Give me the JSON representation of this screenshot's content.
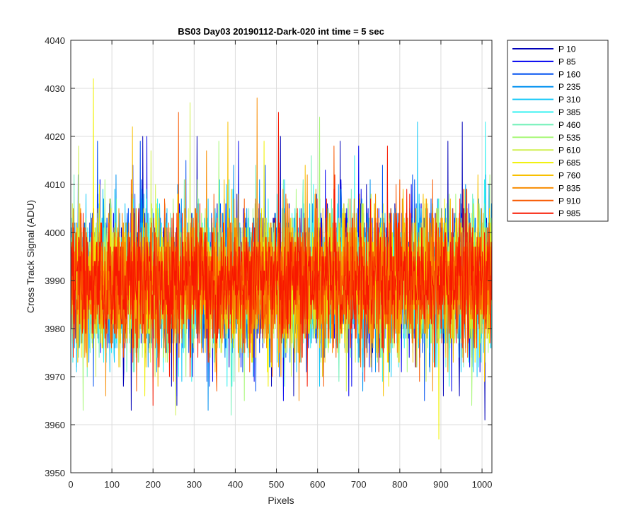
{
  "chart_data": {
    "type": "line",
    "title": "BS03 Day03 20190112-Dark-020 int time = 5 sec",
    "xlabel": "Pixels",
    "ylabel": "Cross Track Signal (ADU)",
    "xlim": [
      0,
      1024
    ],
    "ylim": [
      3950,
      4040
    ],
    "xticks": [
      0,
      100,
      200,
      300,
      400,
      500,
      600,
      700,
      800,
      900,
      1000
    ],
    "yticks": [
      3950,
      3960,
      3970,
      3980,
      3990,
      4000,
      4010,
      4020,
      4030,
      4040
    ],
    "grid": true,
    "legend_position": "outside-right",
    "x_start": 1,
    "x_step": 1,
    "n_points": 1024,
    "noise": {
      "mean": 3990,
      "std": 7,
      "seed": 20190112
    },
    "series": [
      {
        "name": "P 10",
        "color": "#0000B8",
        "highlights": [
          [
            151,
            4014
          ],
          [
            175,
            4020
          ],
          [
            307,
            4020
          ],
          [
            510,
            4020
          ],
          [
            655,
            4019
          ],
          [
            917,
            4019
          ],
          [
            952,
            4023
          ],
          [
            128,
            3968
          ],
          [
            147,
            3963
          ],
          [
            258,
            3964
          ],
          [
            542,
            3966
          ],
          [
            906,
            3966
          ],
          [
            945,
            3966
          ],
          [
            1007,
            3961
          ]
        ]
      },
      {
        "name": "P 85",
        "color": "#0000F0",
        "highlights": [
          [
            185,
            4020
          ],
          [
            408,
            4019
          ],
          [
            619,
            4013
          ],
          [
            700,
            4018
          ],
          [
            258,
            3966
          ],
          [
            517,
            3965
          ],
          [
            676,
            3966
          ],
          [
            926,
            3967
          ]
        ]
      },
      {
        "name": "P 160",
        "color": "#0050F0",
        "highlights": [
          [
            65,
            4019
          ],
          [
            169,
            4019
          ],
          [
            280,
            4015
          ],
          [
            473,
            4014
          ],
          [
            758,
            4014
          ],
          [
            1009,
            4012
          ],
          [
            55,
            3968
          ],
          [
            200,
            3970
          ],
          [
            450,
            3967
          ],
          [
            860,
            3965
          ]
        ]
      },
      {
        "name": "P 235",
        "color": "#0090F0",
        "highlights": [
          [
            110,
            4012
          ],
          [
            396,
            4014
          ],
          [
            770,
            4013
          ],
          [
            1017,
            4010
          ],
          [
            14,
            3972
          ],
          [
            334,
            3963
          ],
          [
            710,
            3967
          ]
        ]
      },
      {
        "name": "P 310",
        "color": "#10C8F8",
        "highlights": [
          [
            843,
            4023
          ],
          [
            520,
            4011
          ],
          [
            95,
            3971
          ],
          [
            605,
            3968
          ],
          [
            760,
            3970
          ]
        ]
      },
      {
        "name": "P 385",
        "color": "#30F0F0",
        "highlights": [
          [
            1008,
            4023
          ],
          [
            690,
            4016
          ],
          [
            380,
            3968
          ],
          [
            920,
            3968
          ]
        ]
      },
      {
        "name": "P 460",
        "color": "#70F0B8",
        "highlights": [
          [
            450,
            4014
          ],
          [
            585,
            4016
          ],
          [
            40,
            3970
          ],
          [
            390,
            3962
          ],
          [
            520,
            3968
          ]
        ]
      },
      {
        "name": "P 535",
        "color": "#A8F878",
        "highlights": [
          [
            605,
            4024
          ],
          [
            360,
            4019
          ],
          [
            30,
            3963
          ],
          [
            422,
            3965
          ],
          [
            975,
            3964
          ]
        ]
      },
      {
        "name": "P 610",
        "color": "#D0F050",
        "highlights": [
          [
            290,
            4027
          ],
          [
            195,
            4017
          ],
          [
            19,
            4018
          ],
          [
            255,
            3962
          ],
          [
            670,
            3967
          ]
        ]
      },
      {
        "name": "P 685",
        "color": "#F0F000",
        "highlights": [
          [
            55,
            4032
          ],
          [
            470,
            4019
          ],
          [
            895,
            3957
          ],
          [
            180,
            3966
          ],
          [
            480,
            3968
          ]
        ]
      },
      {
        "name": "P 760",
        "color": "#F8C000",
        "highlights": [
          [
            150,
            4022
          ],
          [
            382,
            4023
          ],
          [
            570,
            4014
          ],
          [
            212,
            3968
          ],
          [
            760,
            3966
          ]
        ]
      },
      {
        "name": "P 835",
        "color": "#F88C00",
        "highlights": [
          [
            453,
            4028
          ],
          [
            330,
            4017
          ],
          [
            85,
            3966
          ],
          [
            555,
            3965
          ],
          [
            880,
            3967
          ]
        ]
      },
      {
        "name": "P 910",
        "color": "#F85800",
        "highlights": [
          [
            262,
            4025
          ],
          [
            640,
            4018
          ],
          [
            160,
            3967
          ],
          [
            355,
            3967
          ],
          [
            615,
            3968
          ]
        ]
      },
      {
        "name": "P 985",
        "color": "#F81800",
        "highlights": [
          [
            505,
            4025
          ],
          [
            770,
            4018
          ],
          [
            200,
            3964
          ],
          [
            575,
            3968
          ],
          [
            715,
            3969
          ]
        ]
      }
    ]
  }
}
